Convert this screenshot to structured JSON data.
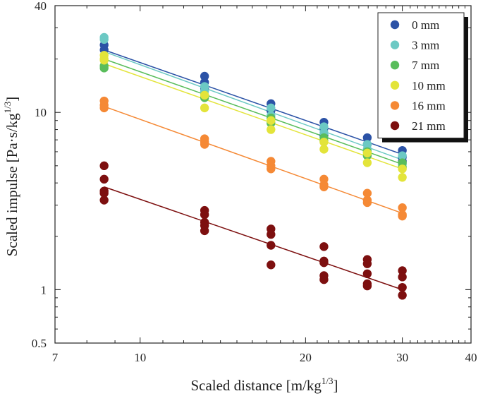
{
  "chart_data": {
    "type": "scatter",
    "title": "",
    "xlabel": "Scaled distance [m/kg",
    "xlabel_sup": "1/3",
    "xlabel_end": "]",
    "ylabel": "Scaled impulse [Pa·s/kg",
    "ylabel_sup": "1/3",
    "ylabel_end": "]",
    "x_scale": "log",
    "y_scale": "log",
    "xlim": [
      7,
      40
    ],
    "ylim": [
      0.5,
      40
    ],
    "x_ticklabels": [
      "7",
      "10",
      "20",
      "30",
      "40"
    ],
    "y_ticklabels": [
      "0.5",
      "1",
      "10",
      "40"
    ],
    "grid": false,
    "legend_position": "top-right",
    "legend_shadow": true,
    "series": [
      {
        "name": "0 mm",
        "color": "#2b52a6",
        "points": [
          [
            8.6,
            24.0
          ],
          [
            8.6,
            22.5
          ],
          [
            13.1,
            16.0
          ],
          [
            13.1,
            14.8
          ],
          [
            13.1,
            13.6
          ],
          [
            17.3,
            11.2
          ],
          [
            17.3,
            10.2
          ],
          [
            21.6,
            8.8
          ],
          [
            21.6,
            8.1
          ],
          [
            21.6,
            7.4
          ],
          [
            25.9,
            7.2
          ],
          [
            25.9,
            6.6
          ],
          [
            30.0,
            6.1
          ],
          [
            30.0,
            5.6
          ],
          [
            30.0,
            5.3
          ]
        ],
        "fit": [
          [
            8.6,
            22.5
          ],
          [
            30.0,
            5.8
          ]
        ]
      },
      {
        "name": "3 mm",
        "color": "#6cc9c4",
        "points": [
          [
            8.6,
            26.5
          ],
          [
            8.6,
            25.8
          ],
          [
            13.1,
            14.0
          ],
          [
            13.1,
            13.2
          ],
          [
            17.3,
            10.6
          ],
          [
            17.3,
            9.6
          ],
          [
            21.6,
            8.3
          ],
          [
            21.6,
            7.7
          ],
          [
            25.9,
            6.6
          ],
          [
            25.9,
            6.2
          ],
          [
            30.0,
            5.7
          ],
          [
            30.0,
            5.1
          ]
        ],
        "fit": [
          [
            8.6,
            22.0
          ],
          [
            30.0,
            5.4
          ]
        ]
      },
      {
        "name": "7 mm",
        "color": "#59bd5b",
        "points": [
          [
            8.6,
            18.3
          ],
          [
            8.6,
            17.8
          ],
          [
            13.1,
            12.5
          ],
          [
            13.1,
            12.1
          ],
          [
            17.3,
            9.3
          ],
          [
            17.3,
            8.7
          ],
          [
            21.6,
            7.2
          ],
          [
            21.6,
            6.9
          ],
          [
            25.9,
            6.0
          ],
          [
            25.9,
            5.7
          ],
          [
            30.0,
            5.2
          ],
          [
            30.0,
            4.9
          ]
        ],
        "fit": [
          [
            8.6,
            20.0
          ],
          [
            30.0,
            5.1
          ]
        ]
      },
      {
        "name": "10 mm",
        "color": "#e3e43a",
        "points": [
          [
            8.6,
            21.0
          ],
          [
            8.6,
            20.0
          ],
          [
            8.6,
            19.7
          ],
          [
            13.1,
            12.5
          ],
          [
            13.1,
            10.6
          ],
          [
            17.3,
            9.0
          ],
          [
            17.3,
            8.0
          ],
          [
            21.6,
            6.8
          ],
          [
            21.6,
            6.2
          ],
          [
            25.9,
            5.9
          ],
          [
            25.9,
            5.2
          ],
          [
            30.0,
            4.8
          ],
          [
            30.0,
            4.3
          ]
        ],
        "fit": [
          [
            8.6,
            18.8
          ],
          [
            30.0,
            4.8
          ]
        ]
      },
      {
        "name": "16 mm",
        "color": "#f58935",
        "points": [
          [
            8.6,
            11.6
          ],
          [
            8.6,
            11.0
          ],
          [
            8.6,
            10.6
          ],
          [
            13.1,
            7.1
          ],
          [
            13.1,
            6.8
          ],
          [
            13.1,
            6.6
          ],
          [
            17.3,
            5.3
          ],
          [
            17.3,
            5.0
          ],
          [
            17.3,
            4.8
          ],
          [
            21.6,
            4.2
          ],
          [
            21.6,
            3.9
          ],
          [
            21.6,
            3.8
          ],
          [
            25.9,
            3.5
          ],
          [
            25.9,
            3.2
          ],
          [
            25.9,
            3.1
          ],
          [
            30.0,
            2.9
          ],
          [
            30.0,
            2.65
          ],
          [
            30.0,
            2.6
          ]
        ],
        "fit": [
          [
            8.6,
            10.8
          ],
          [
            30.0,
            2.7
          ]
        ]
      },
      {
        "name": "21 mm",
        "color": "#7d0f0f",
        "points": [
          [
            8.6,
            5.0
          ],
          [
            8.6,
            4.2
          ],
          [
            8.6,
            3.6
          ],
          [
            8.6,
            3.5
          ],
          [
            8.6,
            3.2
          ],
          [
            13.1,
            2.8
          ],
          [
            13.1,
            2.65
          ],
          [
            13.1,
            2.4
          ],
          [
            13.1,
            2.3
          ],
          [
            13.1,
            2.15
          ],
          [
            17.3,
            2.2
          ],
          [
            17.3,
            2.05
          ],
          [
            17.3,
            1.78
          ],
          [
            17.3,
            1.38
          ],
          [
            21.6,
            1.75
          ],
          [
            21.6,
            1.45
          ],
          [
            21.6,
            1.42
          ],
          [
            21.6,
            1.2
          ],
          [
            21.6,
            1.14
          ],
          [
            25.9,
            1.48
          ],
          [
            25.9,
            1.4
          ],
          [
            25.9,
            1.23
          ],
          [
            25.9,
            1.08
          ],
          [
            25.9,
            1.05
          ],
          [
            30.0,
            1.28
          ],
          [
            30.0,
            1.18
          ],
          [
            30.0,
            1.03
          ],
          [
            30.0,
            0.93
          ]
        ],
        "fit": [
          [
            8.6,
            3.8
          ],
          [
            30.0,
            1.0
          ]
        ]
      }
    ]
  }
}
